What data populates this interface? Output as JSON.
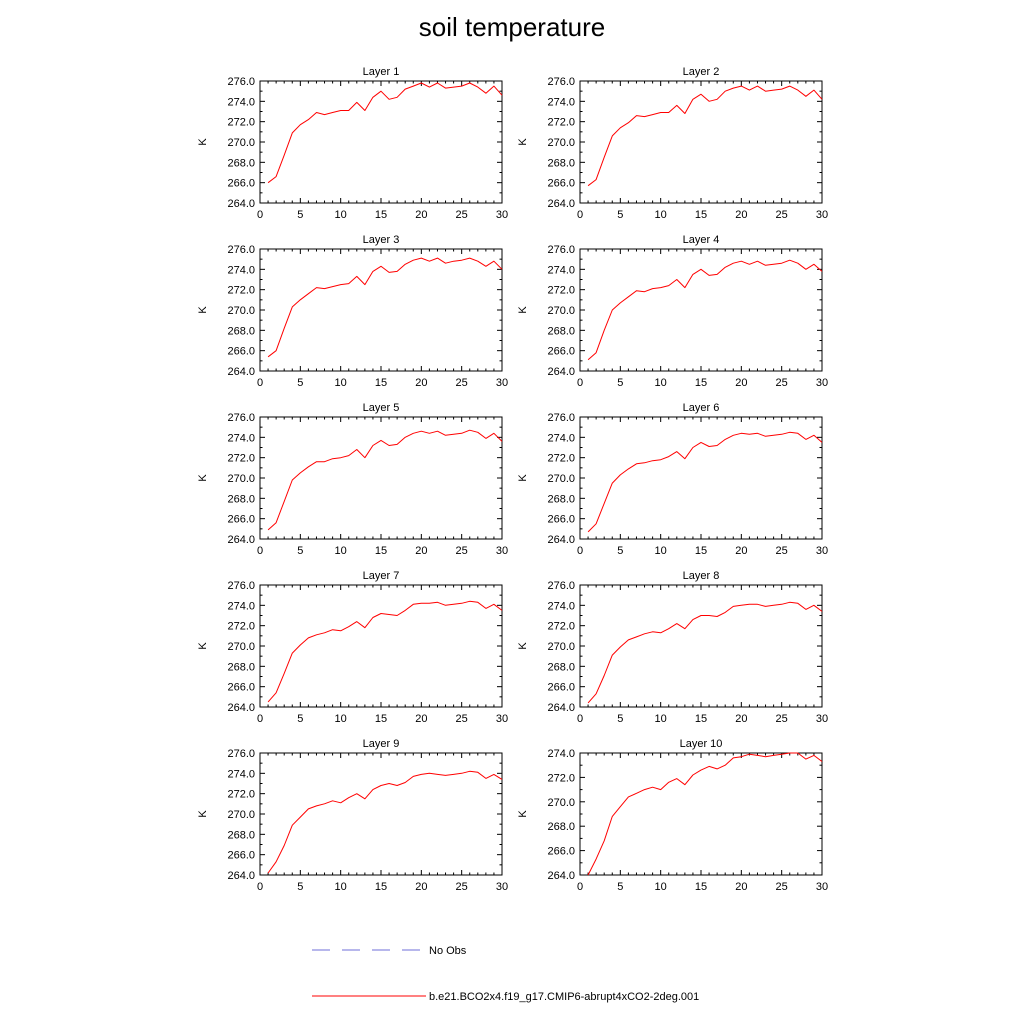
{
  "title": "soil temperature",
  "colors": {
    "model": "#ff0000",
    "obs": "#6f6fd8",
    "axis": "#000000"
  },
  "legend": {
    "obs_label": "No Obs",
    "model_label": "b.e21.BCO2x4.f19_g17.CMIP6-abrupt4xCO2-2deg.001"
  },
  "chart_data": [
    {
      "type": "line",
      "title": "Layer 1",
      "xlabel": "",
      "ylabel": "K",
      "xlim": [
        0,
        30
      ],
      "ylim": [
        264,
        276
      ],
      "xticks": [
        "0",
        "5",
        "10",
        "15",
        "20",
        "25",
        "30"
      ],
      "yticks": [
        "264.0",
        "266.0",
        "268.0",
        "270.0",
        "272.0",
        "274.0",
        "276.0"
      ],
      "x": [
        1,
        2,
        3,
        4,
        5,
        6,
        7,
        8,
        9,
        10,
        11,
        12,
        13,
        14,
        15,
        16,
        17,
        18,
        19,
        20,
        21,
        22,
        23,
        24,
        25,
        26,
        27,
        28,
        29,
        30
      ],
      "series": [
        {
          "values": [
            266.0,
            266.6,
            268.7,
            270.9,
            271.7,
            272.2,
            272.9,
            272.7,
            272.9,
            273.1,
            273.1,
            273.9,
            273.1,
            274.4,
            275.0,
            274.2,
            274.4,
            275.2,
            275.5,
            275.8,
            275.4,
            275.8,
            275.3,
            275.4,
            275.5,
            275.8,
            275.4,
            274.8,
            275.5,
            274.6
          ]
        }
      ]
    },
    {
      "type": "line",
      "title": "Layer 2",
      "xlabel": "",
      "ylabel": "K",
      "xlim": [
        0,
        30
      ],
      "ylim": [
        264,
        276
      ],
      "xticks": [
        "0",
        "5",
        "10",
        "15",
        "20",
        "25",
        "30"
      ],
      "yticks": [
        "264.0",
        "266.0",
        "268.0",
        "270.0",
        "272.0",
        "274.0",
        "276.0"
      ],
      "x": [
        1,
        2,
        3,
        4,
        5,
        6,
        7,
        8,
        9,
        10,
        11,
        12,
        13,
        14,
        15,
        16,
        17,
        18,
        19,
        20,
        21,
        22,
        23,
        24,
        25,
        26,
        27,
        28,
        29,
        30
      ],
      "series": [
        {
          "values": [
            265.7,
            266.3,
            268.5,
            270.6,
            271.4,
            271.9,
            272.6,
            272.5,
            272.7,
            272.9,
            272.9,
            273.6,
            272.8,
            274.2,
            274.7,
            274.0,
            274.2,
            275.0,
            275.3,
            275.5,
            275.1,
            275.5,
            275.0,
            275.1,
            275.2,
            275.5,
            275.1,
            274.5,
            275.1,
            274.2
          ]
        }
      ]
    },
    {
      "type": "line",
      "title": "Layer 3",
      "xlabel": "",
      "ylabel": "K",
      "xlim": [
        0,
        30
      ],
      "ylim": [
        264,
        276
      ],
      "xticks": [
        "0",
        "5",
        "10",
        "15",
        "20",
        "25",
        "30"
      ],
      "yticks": [
        "264.0",
        "266.0",
        "268.0",
        "270.0",
        "272.0",
        "274.0",
        "276.0"
      ],
      "x": [
        1,
        2,
        3,
        4,
        5,
        6,
        7,
        8,
        9,
        10,
        11,
        12,
        13,
        14,
        15,
        16,
        17,
        18,
        19,
        20,
        21,
        22,
        23,
        24,
        25,
        26,
        27,
        28,
        29,
        30
      ],
      "series": [
        {
          "values": [
            265.4,
            266.0,
            268.2,
            270.3,
            271.0,
            271.6,
            272.2,
            272.1,
            272.3,
            272.5,
            272.6,
            273.3,
            272.5,
            273.8,
            274.3,
            273.7,
            273.8,
            274.5,
            274.9,
            275.1,
            274.8,
            275.1,
            274.6,
            274.8,
            274.9,
            275.1,
            274.8,
            274.3,
            274.8,
            274.0
          ]
        }
      ]
    },
    {
      "type": "line",
      "title": "Layer 4",
      "xlabel": "",
      "ylabel": "K",
      "xlim": [
        0,
        30
      ],
      "ylim": [
        264,
        276
      ],
      "xticks": [
        "0",
        "5",
        "10",
        "15",
        "20",
        "25",
        "30"
      ],
      "yticks": [
        "264.0",
        "266.0",
        "268.0",
        "270.0",
        "272.0",
        "274.0",
        "276.0"
      ],
      "x": [
        1,
        2,
        3,
        4,
        5,
        6,
        7,
        8,
        9,
        10,
        11,
        12,
        13,
        14,
        15,
        16,
        17,
        18,
        19,
        20,
        21,
        22,
        23,
        24,
        25,
        26,
        27,
        28,
        29,
        30
      ],
      "series": [
        {
          "values": [
            265.1,
            265.8,
            268.0,
            270.0,
            270.7,
            271.3,
            271.9,
            271.8,
            272.1,
            272.2,
            272.4,
            273.0,
            272.2,
            273.5,
            274.0,
            273.4,
            273.5,
            274.2,
            274.6,
            274.8,
            274.5,
            274.8,
            274.4,
            274.5,
            274.6,
            274.9,
            274.6,
            274.0,
            274.5,
            273.8
          ]
        }
      ]
    },
    {
      "type": "line",
      "title": "Layer 5",
      "xlabel": "",
      "ylabel": "K",
      "xlim": [
        0,
        30
      ],
      "ylim": [
        264,
        276
      ],
      "xticks": [
        "0",
        "5",
        "10",
        "15",
        "20",
        "25",
        "30"
      ],
      "yticks": [
        "264.0",
        "266.0",
        "268.0",
        "270.0",
        "272.0",
        "274.0",
        "276.0"
      ],
      "x": [
        1,
        2,
        3,
        4,
        5,
        6,
        7,
        8,
        9,
        10,
        11,
        12,
        13,
        14,
        15,
        16,
        17,
        18,
        19,
        20,
        21,
        22,
        23,
        24,
        25,
        26,
        27,
        28,
        29,
        30
      ],
      "series": [
        {
          "values": [
            264.9,
            265.6,
            267.7,
            269.8,
            270.5,
            271.1,
            271.6,
            271.6,
            271.9,
            272.0,
            272.2,
            272.8,
            272.0,
            273.2,
            273.7,
            273.2,
            273.3,
            274.0,
            274.4,
            274.6,
            274.4,
            274.6,
            274.2,
            274.3,
            274.4,
            274.7,
            274.5,
            273.9,
            274.4,
            273.6
          ]
        }
      ]
    },
    {
      "type": "line",
      "title": "Layer 6",
      "xlabel": "",
      "ylabel": "K",
      "xlim": [
        0,
        30
      ],
      "ylim": [
        264,
        276
      ],
      "xticks": [
        "0",
        "5",
        "10",
        "15",
        "20",
        "25",
        "30"
      ],
      "yticks": [
        "264.0",
        "266.0",
        "268.0",
        "270.0",
        "272.0",
        "274.0",
        "276.0"
      ],
      "x": [
        1,
        2,
        3,
        4,
        5,
        6,
        7,
        8,
        9,
        10,
        11,
        12,
        13,
        14,
        15,
        16,
        17,
        18,
        19,
        20,
        21,
        22,
        23,
        24,
        25,
        26,
        27,
        28,
        29,
        30
      ],
      "series": [
        {
          "values": [
            264.7,
            265.5,
            267.5,
            269.5,
            270.3,
            270.9,
            271.4,
            271.5,
            271.7,
            271.8,
            272.1,
            272.6,
            271.9,
            273.0,
            273.5,
            273.1,
            273.2,
            273.8,
            274.2,
            274.4,
            274.3,
            274.4,
            274.1,
            274.2,
            274.3,
            274.5,
            274.4,
            273.8,
            274.2,
            273.5
          ]
        }
      ]
    },
    {
      "type": "line",
      "title": "Layer 7",
      "xlabel": "",
      "ylabel": "K",
      "xlim": [
        0,
        30
      ],
      "ylim": [
        264,
        276
      ],
      "xticks": [
        "0",
        "5",
        "10",
        "15",
        "20",
        "25",
        "30"
      ],
      "yticks": [
        "264.0",
        "266.0",
        "268.0",
        "270.0",
        "272.0",
        "274.0",
        "276.0"
      ],
      "x": [
        1,
        2,
        3,
        4,
        5,
        6,
        7,
        8,
        9,
        10,
        11,
        12,
        13,
        14,
        15,
        16,
        17,
        18,
        19,
        20,
        21,
        22,
        23,
        24,
        25,
        26,
        27,
        28,
        29,
        30
      ],
      "series": [
        {
          "values": [
            264.5,
            265.4,
            267.3,
            269.3,
            270.1,
            270.8,
            271.1,
            271.3,
            271.6,
            271.5,
            271.9,
            272.4,
            271.8,
            272.8,
            273.2,
            273.1,
            273.0,
            273.5,
            274.1,
            274.2,
            274.2,
            274.3,
            274.0,
            274.1,
            274.2,
            274.4,
            274.3,
            273.7,
            274.1,
            273.5
          ]
        }
      ]
    },
    {
      "type": "line",
      "title": "Layer 8",
      "xlabel": "",
      "ylabel": "K",
      "xlim": [
        0,
        30
      ],
      "ylim": [
        264,
        276
      ],
      "xticks": [
        "0",
        "5",
        "10",
        "15",
        "20",
        "25",
        "30"
      ],
      "yticks": [
        "264.0",
        "266.0",
        "268.0",
        "270.0",
        "272.0",
        "274.0",
        "276.0"
      ],
      "x": [
        1,
        2,
        3,
        4,
        5,
        6,
        7,
        8,
        9,
        10,
        11,
        12,
        13,
        14,
        15,
        16,
        17,
        18,
        19,
        20,
        21,
        22,
        23,
        24,
        25,
        26,
        27,
        28,
        29,
        30
      ],
      "series": [
        {
          "values": [
            264.4,
            265.3,
            267.1,
            269.1,
            269.9,
            270.6,
            270.9,
            271.2,
            271.4,
            271.3,
            271.7,
            272.2,
            271.7,
            272.6,
            273.0,
            273.0,
            272.9,
            273.3,
            273.9,
            274.0,
            274.1,
            274.1,
            273.9,
            274.0,
            274.1,
            274.3,
            274.2,
            273.6,
            274.0,
            273.4
          ]
        }
      ]
    },
    {
      "type": "line",
      "title": "Layer 9",
      "xlabel": "",
      "ylabel": "K",
      "xlim": [
        0,
        30
      ],
      "ylim": [
        264,
        276
      ],
      "xticks": [
        "0",
        "5",
        "10",
        "15",
        "20",
        "25",
        "30"
      ],
      "yticks": [
        "264.0",
        "266.0",
        "268.0",
        "270.0",
        "272.0",
        "274.0",
        "276.0"
      ],
      "x": [
        1,
        2,
        3,
        4,
        5,
        6,
        7,
        8,
        9,
        10,
        11,
        12,
        13,
        14,
        15,
        16,
        17,
        18,
        19,
        20,
        21,
        22,
        23,
        24,
        25,
        26,
        27,
        28,
        29,
        30
      ],
      "series": [
        {
          "values": [
            264.2,
            265.3,
            266.9,
            268.9,
            269.7,
            270.5,
            270.8,
            271.0,
            271.3,
            271.1,
            271.6,
            272.0,
            271.5,
            272.4,
            272.8,
            273.0,
            272.8,
            273.1,
            273.7,
            273.9,
            274.0,
            273.9,
            273.8,
            273.9,
            274.0,
            274.2,
            274.1,
            273.5,
            273.9,
            273.4
          ]
        }
      ]
    },
    {
      "type": "line",
      "title": "Layer 10",
      "xlabel": "",
      "ylabel": "K",
      "xlim": [
        0,
        30
      ],
      "ylim": [
        264,
        274
      ],
      "xticks": [
        "0",
        "5",
        "10",
        "15",
        "20",
        "25",
        "30"
      ],
      "yticks": [
        "264.0",
        "266.0",
        "268.0",
        "270.0",
        "272.0",
        "274.0"
      ],
      "x": [
        1,
        2,
        3,
        4,
        5,
        6,
        7,
        8,
        9,
        10,
        11,
        12,
        13,
        14,
        15,
        16,
        17,
        18,
        19,
        20,
        21,
        22,
        23,
        24,
        25,
        26,
        27,
        28,
        29,
        30
      ],
      "series": [
        {
          "values": [
            264.0,
            265.3,
            266.8,
            268.8,
            269.6,
            270.4,
            270.7,
            271.0,
            271.2,
            271.0,
            271.6,
            271.9,
            271.4,
            272.2,
            272.6,
            272.9,
            272.7,
            273.0,
            273.6,
            273.7,
            273.9,
            273.8,
            273.7,
            273.8,
            273.9,
            274.0,
            274.0,
            273.5,
            273.8,
            273.3
          ]
        }
      ]
    }
  ]
}
